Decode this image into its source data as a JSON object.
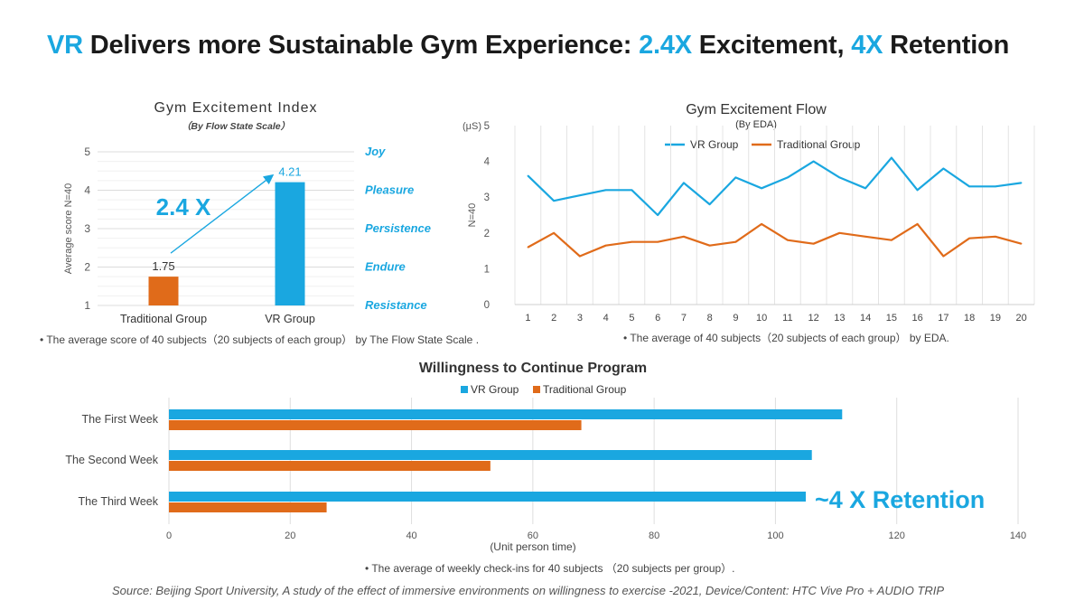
{
  "headline": {
    "part1": "VR",
    "part2": " Delivers more Sustainable Gym Experience: ",
    "part3": "2.4X",
    "part4": " Excitement, ",
    "part5": "4X",
    "part6": " Retention"
  },
  "colors": {
    "vr": "#1aa7e0",
    "traditional": "#e06b1a",
    "accent": "#1aa7e0"
  },
  "notes": {
    "excitement_index": "•    The average score of 40 subjects（20 subjects of each group） by The Flow State Scale .",
    "excitement_flow": "•    The average  of 40 subjects（20 subjects of each group） by EDA.",
    "willingness": "•    The average  of weekly check-ins for 40 subjects （20 subjects per group）."
  },
  "source": "Source: Beijing Sport University, A study of the effect of immersive environments on willingness to exercise -2021,  Device/Content: HTC Vive Pro + AUDIO TRIP",
  "chart_data": [
    {
      "type": "bar",
      "title": "Gym Excitement Index",
      "subtitle": "（By Flow State Scale）",
      "ylabel": "Average score  N=40",
      "ylim": [
        1,
        5
      ],
      "yticks": [
        "1",
        "2",
        "3",
        "4",
        "5"
      ],
      "categories": [
        "Traditional Group",
        "VR Group"
      ],
      "values": [
        1.75,
        4.21
      ],
      "value_labels": [
        "1.75",
        "4.21"
      ],
      "bar_colors": [
        "#e06b1a",
        "#1aa7e0"
      ],
      "right_labels": [
        "Joy",
        "Pleasure",
        "Persistence",
        "Endure",
        "Resistance"
      ],
      "annotation": "2.4 X",
      "grid": true
    },
    {
      "type": "line",
      "title": "Gym Excitement Flow",
      "subtitle": "(By EDA)",
      "yunit": "(μS)",
      "ylabel": "N=40",
      "ylim": [
        0,
        5
      ],
      "yticks": [
        "0",
        "1",
        "2",
        "3",
        "4",
        "5"
      ],
      "x": [
        "1",
        "2",
        "3",
        "4",
        "5",
        "6",
        "7",
        "8",
        "9",
        "10",
        "11",
        "12",
        "13",
        "14",
        "15",
        "16",
        "17",
        "18",
        "19",
        "20"
      ],
      "legend_position": "top-center",
      "series": [
        {
          "name": "VR Group",
          "color": "#1aa7e0",
          "values": [
            3.6,
            2.9,
            3.05,
            3.2,
            3.2,
            2.5,
            3.4,
            2.8,
            3.55,
            3.25,
            3.55,
            4.0,
            3.55,
            3.25,
            4.1,
            3.2,
            3.8,
            3.3,
            3.3,
            3.4
          ]
        },
        {
          "name": "Traditional Group",
          "color": "#e06b1a",
          "values": [
            1.6,
            2.0,
            1.35,
            1.65,
            1.75,
            1.75,
            1.9,
            1.65,
            1.75,
            2.25,
            1.8,
            1.7,
            2.0,
            1.9,
            1.8,
            2.25,
            1.35,
            1.85,
            1.9,
            1.7
          ]
        }
      ],
      "grid": true
    },
    {
      "type": "bar",
      "orientation": "horizontal",
      "title": "Willingness to Continue Program",
      "xlabel": "(Unit person time)",
      "xlim": [
        0,
        140
      ],
      "xticks": [
        "0",
        "20",
        "40",
        "60",
        "80",
        "100",
        "120",
        "140"
      ],
      "categories": [
        "The First Week",
        "The Second Week",
        "The Third Week"
      ],
      "legend_position": "top-center",
      "series": [
        {
          "name": "VR Group",
          "color": "#1aa7e0",
          "values": [
            111,
            106,
            105
          ]
        },
        {
          "name": "Traditional Group",
          "color": "#e06b1a",
          "values": [
            68,
            53,
            26
          ]
        }
      ],
      "annotation": "~4 X Retention",
      "grid": true
    }
  ]
}
